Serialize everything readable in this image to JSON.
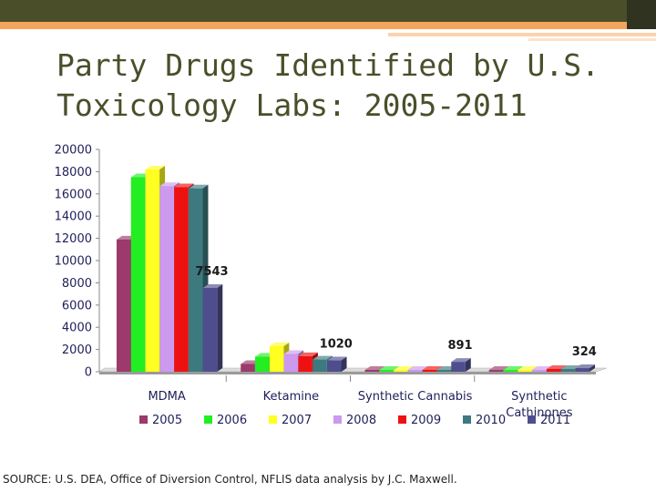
{
  "slide": {
    "title_line1": "Party Drugs Identified by U.S.",
    "title_line2": "Toxicology Labs: 2005-2011",
    "source": "SOURCE: U.S. DEA, Office of Diversion Control, NFLIS data analysis by J.C. Maxwell.",
    "colors": {
      "title": "#4a4f2a",
      "topbar": "#4a4f2a",
      "accent": "#f5a55a"
    }
  },
  "chart_data": {
    "type": "bar",
    "title": "",
    "xlabel": "",
    "ylabel": "",
    "ylim": [
      0,
      20000
    ],
    "yticks": [
      0,
      2000,
      4000,
      6000,
      8000,
      10000,
      12000,
      14000,
      16000,
      18000,
      20000
    ],
    "categories": [
      [
        "MDMA"
      ],
      [
        "Ketamine"
      ],
      [
        "Synthetic Cannabis"
      ],
      [
        "Synthetic",
        "Cathinones"
      ]
    ],
    "series": [
      {
        "name": "2005",
        "color": "#9b3a6b",
        "values": [
          11900,
          700,
          0,
          40
        ]
      },
      {
        "name": "2006",
        "color": "#22ee22",
        "values": [
          17500,
          1350,
          0,
          150
        ]
      },
      {
        "name": "2007",
        "color": "#ffff22",
        "values": [
          18200,
          2300,
          0,
          100
        ]
      },
      {
        "name": "2008",
        "color": "#cc99ee",
        "values": [
          16700,
          1600,
          0,
          100
        ]
      },
      {
        "name": "2009",
        "color": "#ee1111",
        "values": [
          16600,
          1400,
          0,
          250
        ]
      },
      {
        "name": "2010",
        "color": "#3c7a80",
        "values": [
          16500,
          1100,
          0,
          250
        ]
      },
      {
        "name": "2011",
        "color": "#4e4e8e",
        "values": [
          7543,
          1020,
          891,
          324
        ]
      }
    ],
    "data_labels": [
      {
        "category": 0,
        "series": "2011",
        "text": "7543"
      },
      {
        "category": 1,
        "series": "2011",
        "text": "1020"
      },
      {
        "category": 2,
        "series": "2011",
        "text": "891"
      },
      {
        "category": 3,
        "series": "2011",
        "text": "324"
      }
    ],
    "chart_style": "3d-clustered-column",
    "grid": false,
    "legend_position": "bottom"
  }
}
